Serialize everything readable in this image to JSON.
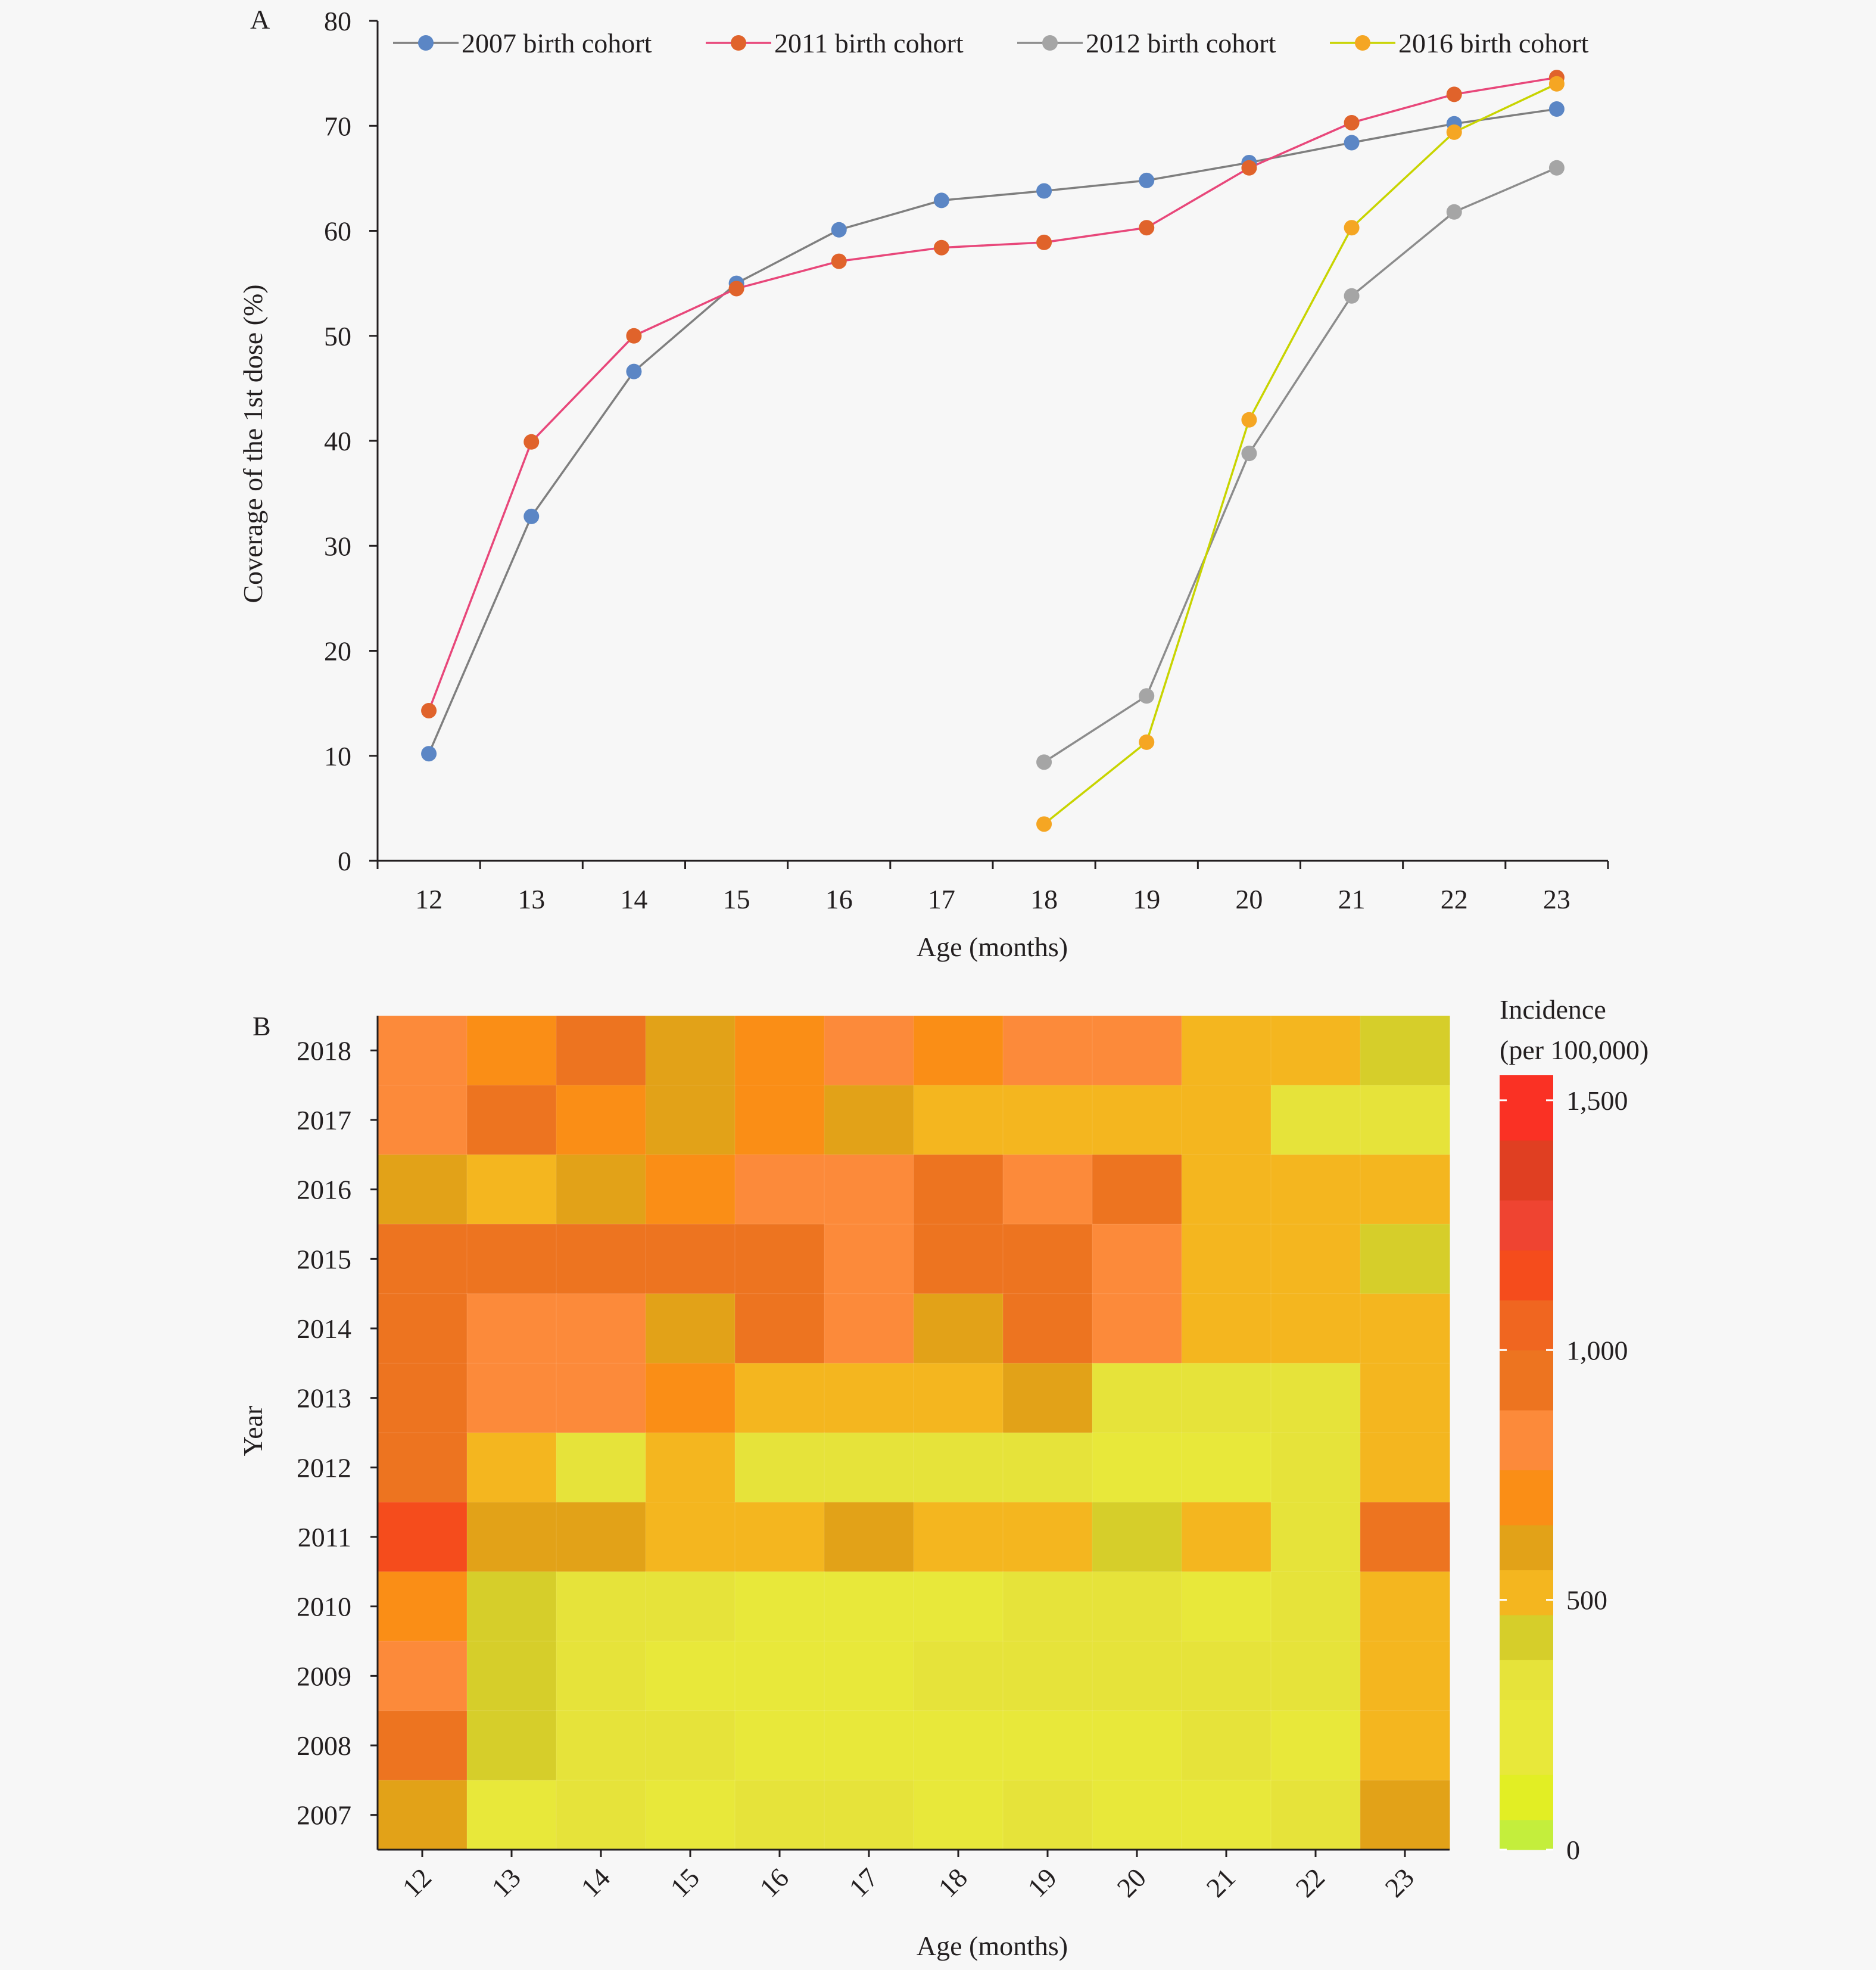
{
  "chart_data": [
    {
      "panel_label": "A",
      "type": "line",
      "x": [
        12,
        13,
        14,
        15,
        16,
        17,
        18,
        19,
        20,
        21,
        22,
        23
      ],
      "xlabel": "Age (months)",
      "ylabel": "Coverage of the 1st dose (%)",
      "ylim": [
        0,
        80
      ],
      "yticks": [
        0,
        10,
        20,
        30,
        40,
        50,
        60,
        70,
        80
      ],
      "grid": false,
      "legend_position": "top",
      "series": [
        {
          "name": "2007 birth cohort",
          "color": "#5b86c5",
          "line_color": "#7f7f7f",
          "values": [
            10.2,
            32.8,
            46.6,
            55.0,
            60.1,
            62.9,
            63.8,
            64.8,
            66.5,
            68.4,
            70.2,
            71.6
          ]
        },
        {
          "name": "2011 birth cohort",
          "color": "#e0632b",
          "line_color": "#e8477a",
          "values": [
            14.3,
            39.9,
            50.0,
            54.5,
            57.1,
            58.4,
            58.9,
            60.3,
            66.0,
            70.3,
            73.0,
            74.6
          ]
        },
        {
          "name": "2012 birth cohort",
          "color": "#a5a5a5",
          "line_color": "#8c8c8c",
          "values": [
            null,
            null,
            null,
            null,
            null,
            null,
            9.4,
            15.7,
            38.8,
            53.8,
            61.8,
            66.0
          ]
        },
        {
          "name": "2016 birth cohort",
          "color": "#f5a623",
          "line_color": "#c8d400",
          "values": [
            null,
            null,
            null,
            null,
            null,
            null,
            3.5,
            11.3,
            42.0,
            60.3,
            69.4,
            74.0
          ]
        }
      ]
    },
    {
      "panel_label": "B",
      "type": "heatmap",
      "x": [
        12,
        13,
        14,
        15,
        16,
        17,
        18,
        19,
        20,
        21,
        22,
        23
      ],
      "y": [
        2018,
        2017,
        2016,
        2015,
        2014,
        2013,
        2012,
        2011,
        2010,
        2009,
        2008,
        2007
      ],
      "xlabel": "Age (months)",
      "ylabel": "Year",
      "colorbar_title": [
        "Incidence",
        "(per 100,000)"
      ],
      "colorbar_range": [
        0,
        1550
      ],
      "colorbar_ticks": [
        0,
        500,
        1000,
        1500
      ],
      "colorbar_tick_labels": [
        "0",
        "500",
        "1,000",
        "1,500"
      ],
      "values": [
        [
          800,
          700,
          900,
          600,
          700,
          800,
          700,
          800,
          800,
          500,
          500,
          400
        ],
        [
          800,
          900,
          700,
          600,
          700,
          600,
          500,
          500,
          500,
          500,
          300,
          300
        ],
        [
          600,
          500,
          600,
          700,
          800,
          800,
          900,
          800,
          950,
          500,
          500,
          500
        ],
        [
          900,
          900,
          900,
          900,
          900,
          800,
          900,
          900,
          800,
          500,
          500,
          400
        ],
        [
          900,
          800,
          800,
          600,
          900,
          800,
          600,
          900,
          800,
          500,
          500,
          500
        ],
        [
          900,
          800,
          800,
          700,
          500,
          500,
          500,
          600,
          300,
          300,
          300,
          500
        ],
        [
          900,
          500,
          300,
          500,
          300,
          300,
          300,
          300,
          250,
          250,
          300,
          500
        ],
        [
          1100,
          600,
          600,
          500,
          500,
          600,
          500,
          500,
          400,
          500,
          300,
          900
        ],
        [
          700,
          400,
          300,
          300,
          250,
          250,
          250,
          300,
          300,
          250,
          300,
          500
        ],
        [
          800,
          400,
          300,
          250,
          250,
          250,
          300,
          300,
          300,
          300,
          300,
          500
        ],
        [
          900,
          400,
          300,
          300,
          250,
          250,
          250,
          250,
          250,
          300,
          250,
          500
        ],
        [
          600,
          250,
          300,
          250,
          300,
          300,
          250,
          300,
          250,
          250,
          300,
          600
        ]
      ]
    }
  ]
}
